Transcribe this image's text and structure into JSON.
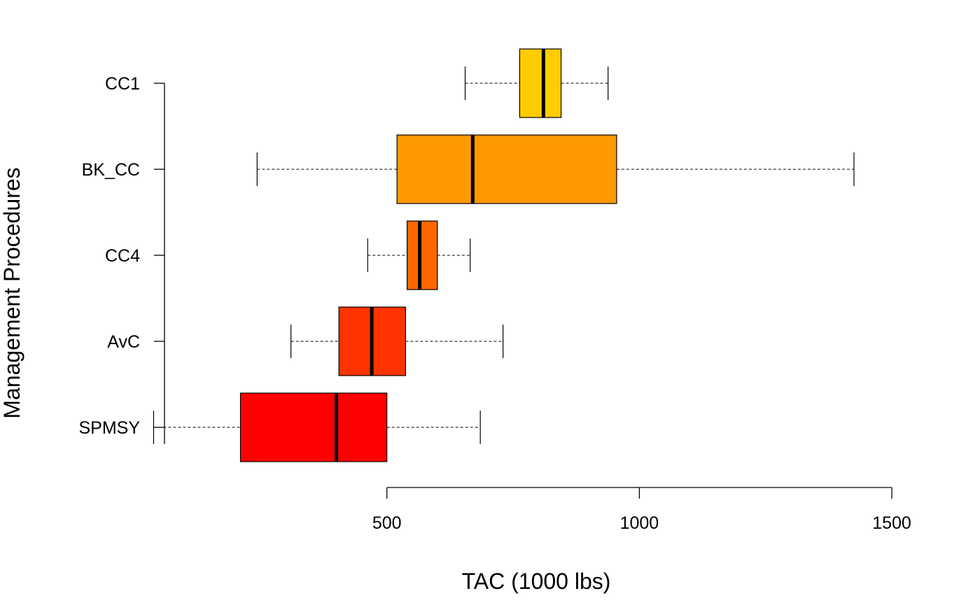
{
  "chart_data": {
    "type": "boxplot",
    "orientation": "horizontal",
    "title": "",
    "xlabel": "TAC (1000 lbs)",
    "ylabel": "Management Procedures",
    "xlim": [
      36,
      1536
    ],
    "x_ticks": [
      500,
      1000,
      1500
    ],
    "categories": [
      "SPMSY",
      "AvC",
      "CC4",
      "BK_CC",
      "CC1"
    ],
    "series": [
      {
        "category": "SPMSY",
        "whisker_low": 38,
        "q1": 210,
        "median": 400,
        "q3": 500,
        "whisker_high": 685,
        "color": "#FF0000"
      },
      {
        "category": "AvC",
        "whisker_low": 310,
        "q1": 405,
        "median": 470,
        "q3": 537,
        "whisker_high": 730,
        "color": "#FF3300"
      },
      {
        "category": "CC4",
        "whisker_low": 462,
        "q1": 540,
        "median": 565,
        "q3": 600,
        "whisker_high": 665,
        "color": "#FF6600"
      },
      {
        "category": "BK_CC",
        "whisker_low": 243,
        "q1": 520,
        "median": 670,
        "q3": 955,
        "whisker_high": 1425,
        "color": "#FF9900"
      },
      {
        "category": "CC1",
        "whisker_low": 655,
        "q1": 763,
        "median": 810,
        "q3": 845,
        "whisker_high": 938,
        "color": "#FFCC00"
      }
    ],
    "grid": false,
    "legend": "none"
  }
}
